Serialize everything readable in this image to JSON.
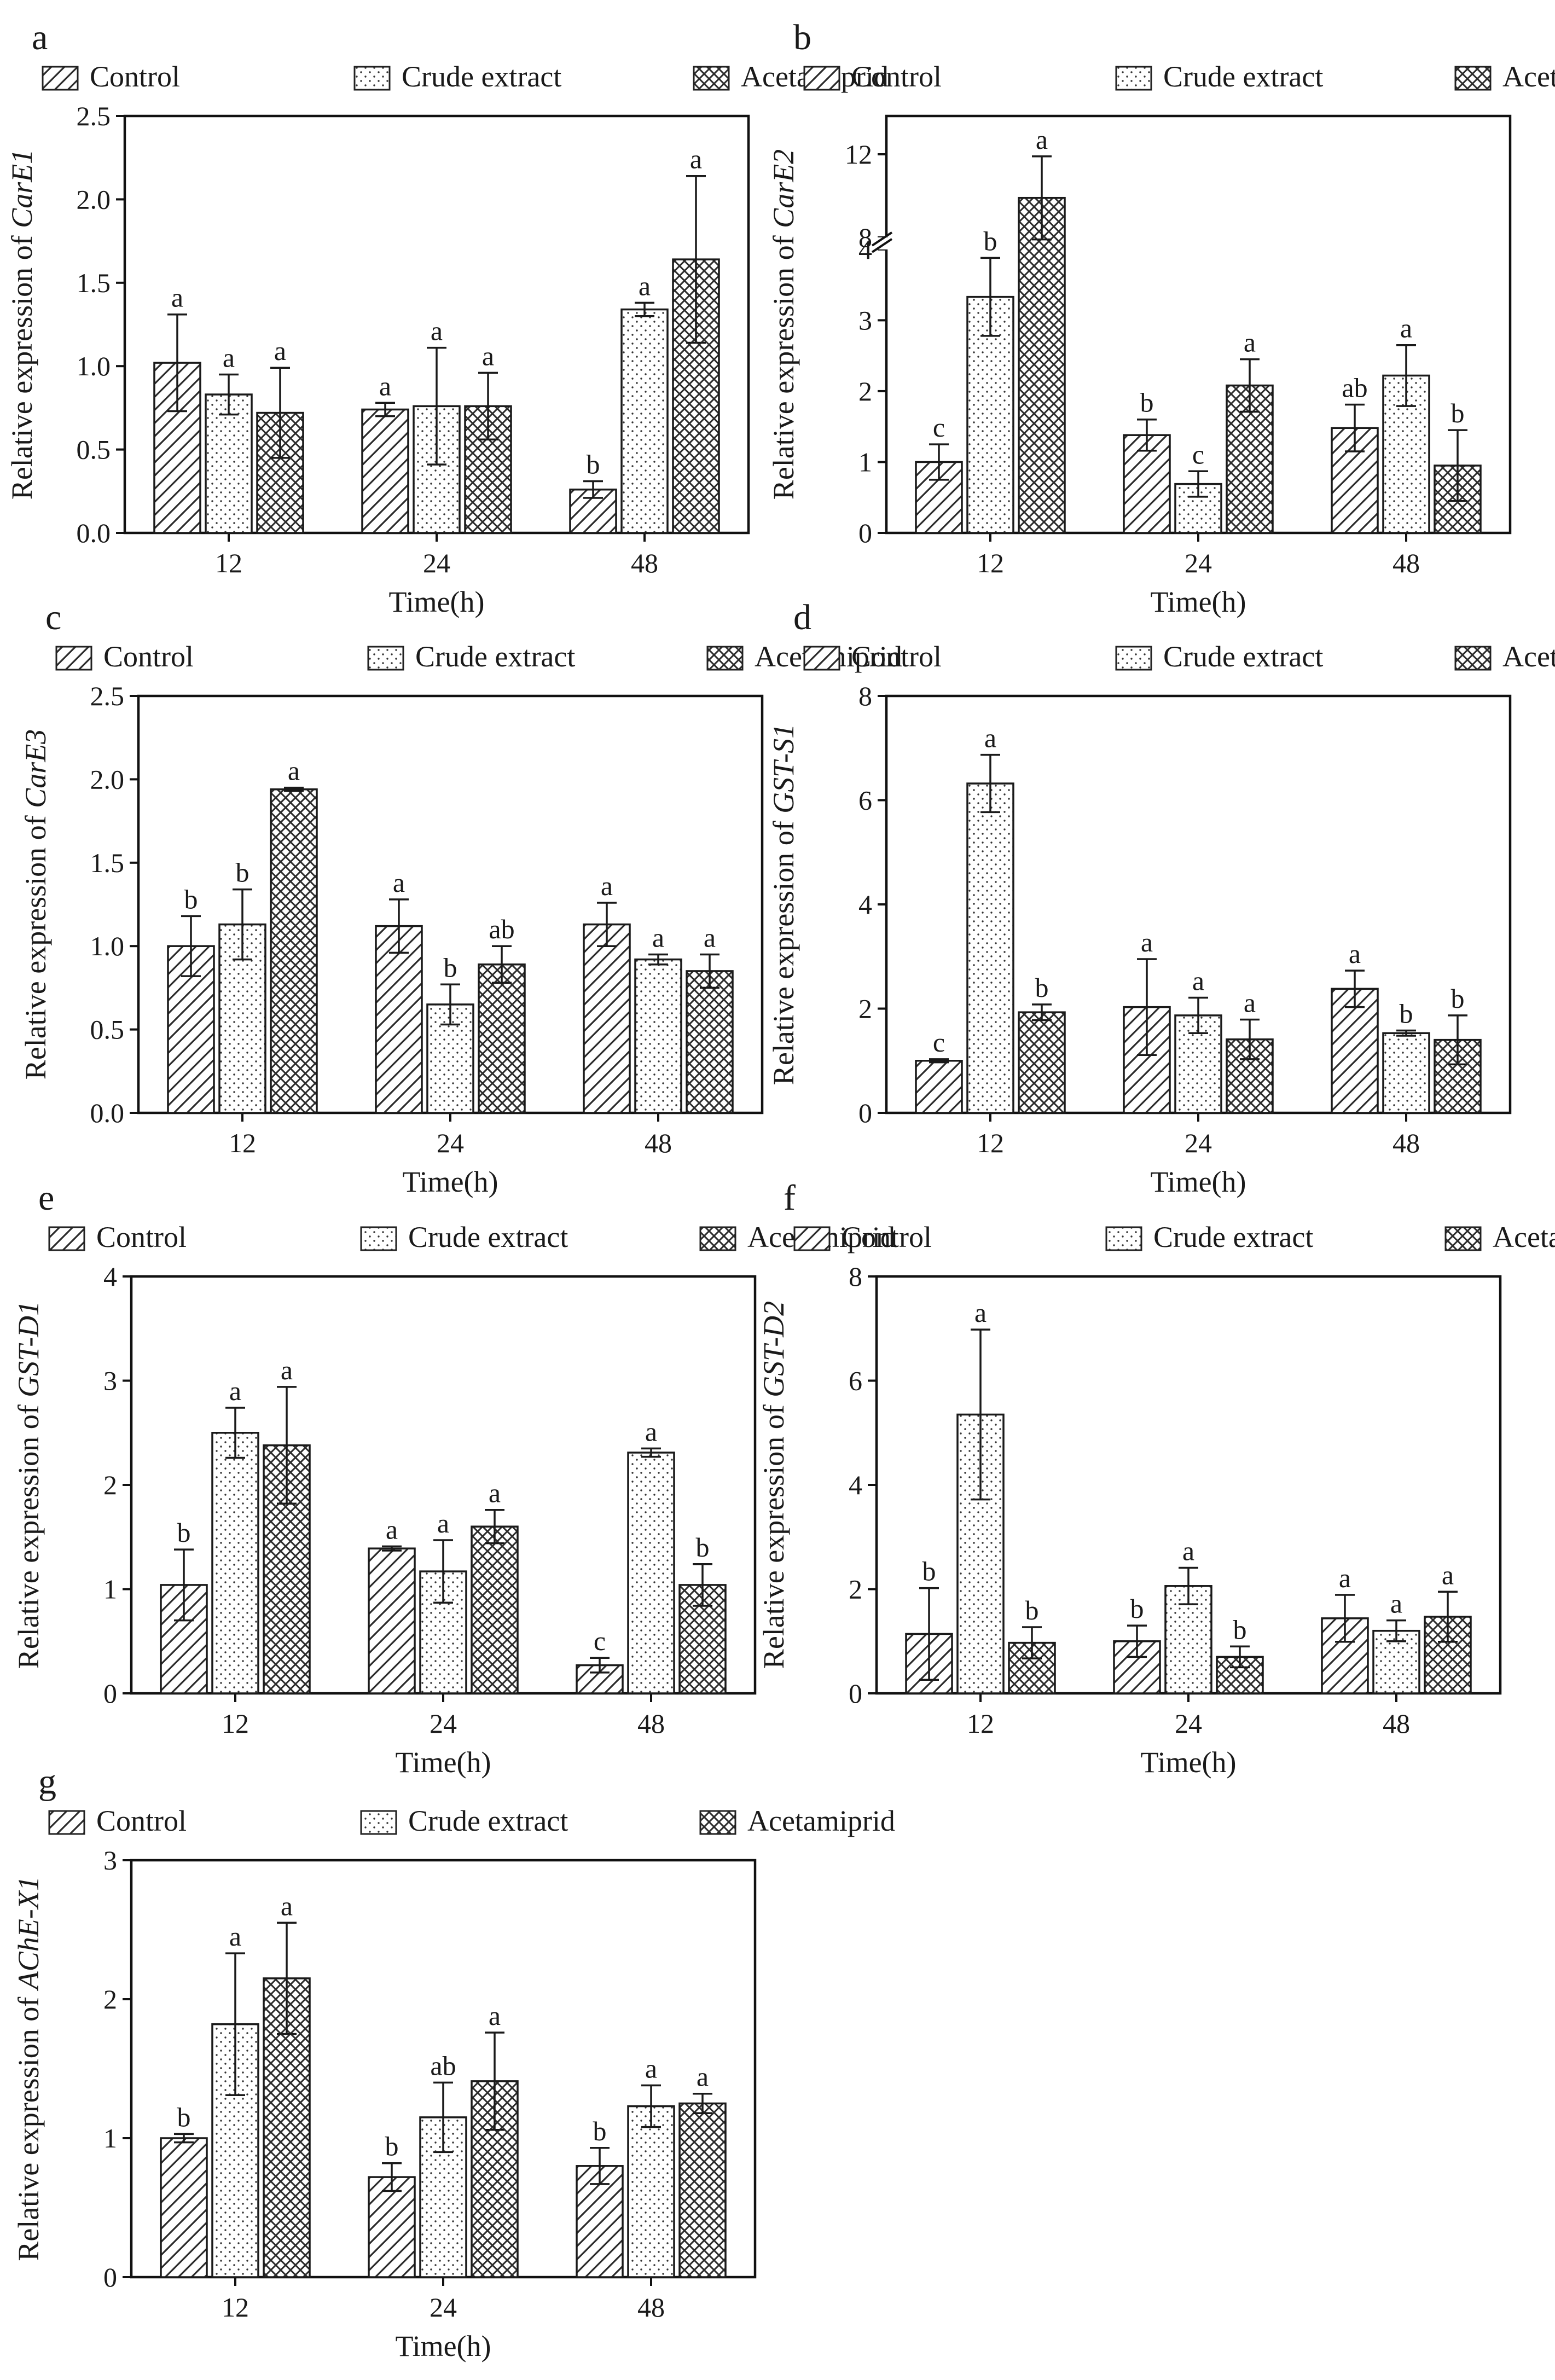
{
  "chart_data": [
    {
      "panel": "a",
      "type": "bar",
      "gene": "CarE1",
      "ylabel_prefix": "Relative expression of ",
      "xlabel": "Time(h)",
      "categories": [
        "12",
        "24",
        "48"
      ],
      "legend": [
        "Control",
        "Crude extract",
        "Acetamiprid"
      ],
      "ylim": [
        0,
        2.5
      ],
      "yticks": [
        "0.0",
        "0.5",
        "1.0",
        "1.5",
        "2.0",
        "2.5"
      ],
      "series": [
        {
          "name": "Control",
          "values": [
            1.02,
            0.74,
            0.26
          ],
          "errors": [
            0.29,
            0.04,
            0.05
          ],
          "letters": [
            "a",
            "a",
            "b"
          ]
        },
        {
          "name": "Crude extract",
          "values": [
            0.83,
            0.76,
            1.34
          ],
          "errors": [
            0.12,
            0.35,
            0.04
          ],
          "letters": [
            "a",
            "a",
            "a"
          ]
        },
        {
          "name": "Acetamiprid",
          "values": [
            0.72,
            0.76,
            1.64
          ],
          "errors": [
            0.27,
            0.2,
            0.5
          ],
          "letters": [
            "a",
            "a",
            "a"
          ]
        }
      ]
    },
    {
      "panel": "b",
      "type": "bar",
      "gene": "CarE2",
      "ylabel_prefix": "Relative expression of ",
      "xlabel": "Time(h)",
      "categories": [
        "12",
        "24",
        "48"
      ],
      "legend": [
        "Control",
        "Crude extract",
        "Acetamiprid"
      ],
      "ylim": [
        0,
        12
      ],
      "yticks": [
        "0",
        "1",
        "2",
        "3",
        "4",
        "8",
        "12"
      ],
      "axis_break": [
        4,
        8
      ],
      "series": [
        {
          "name": "Control",
          "values": [
            1.0,
            1.38,
            1.48
          ],
          "errors": [
            0.25,
            0.22,
            0.33
          ],
          "letters": [
            "c",
            "b",
            "ab"
          ]
        },
        {
          "name": "Crude extract",
          "values": [
            3.33,
            0.69,
            2.22
          ],
          "errors": [
            0.55,
            0.18,
            0.43
          ],
          "letters": [
            "b",
            "c",
            "a"
          ]
        },
        {
          "name": "Acetamiprid",
          "values": [
            9.9,
            2.08,
            0.95
          ],
          "errors": [
            2.0,
            0.37,
            0.5
          ],
          "letters": [
            "a",
            "a",
            "b"
          ]
        }
      ]
    },
    {
      "panel": "c",
      "type": "bar",
      "gene": "CarE3",
      "ylabel_prefix": "Relative expression of ",
      "xlabel": "Time(h)",
      "categories": [
        "12",
        "24",
        "48"
      ],
      "legend": [
        "Control",
        "Crude extract",
        "Acetamiprid"
      ],
      "ylim": [
        0,
        2.5
      ],
      "yticks": [
        "0.0",
        "0.5",
        "1.0",
        "1.5",
        "2.0",
        "2.5"
      ],
      "series": [
        {
          "name": "Control",
          "values": [
            1.0,
            1.12,
            1.13
          ],
          "errors": [
            0.18,
            0.16,
            0.13
          ],
          "letters": [
            "b",
            "a",
            "a"
          ]
        },
        {
          "name": "Crude extract",
          "values": [
            1.13,
            0.65,
            0.92
          ],
          "errors": [
            0.21,
            0.12,
            0.03
          ],
          "letters": [
            "b",
            "b",
            "a"
          ]
        },
        {
          "name": "Acetamiprid",
          "values": [
            1.94,
            0.89,
            0.85
          ],
          "errors": [
            0.01,
            0.11,
            0.1
          ],
          "letters": [
            "a",
            "ab",
            "a"
          ]
        }
      ]
    },
    {
      "panel": "d",
      "type": "bar",
      "gene": "GST-S1",
      "ylabel_prefix": "Relative expression of ",
      "xlabel": "Time(h)",
      "categories": [
        "12",
        "24",
        "48"
      ],
      "legend": [
        "Control",
        "Crude extract",
        "Acetamiprid"
      ],
      "ylim": [
        0,
        8
      ],
      "yticks": [
        "0",
        "2",
        "4",
        "6",
        "8"
      ],
      "series": [
        {
          "name": "Control",
          "values": [
            1.0,
            2.03,
            2.38
          ],
          "errors": [
            0.03,
            0.92,
            0.35
          ],
          "letters": [
            "c",
            "a",
            "a"
          ]
        },
        {
          "name": "Crude extract",
          "values": [
            6.32,
            1.87,
            1.53
          ],
          "errors": [
            0.55,
            0.34,
            0.05
          ],
          "letters": [
            "a",
            "a",
            "b"
          ]
        },
        {
          "name": "Acetamiprid",
          "values": [
            1.93,
            1.41,
            1.4
          ],
          "errors": [
            0.15,
            0.38,
            0.47
          ],
          "letters": [
            "b",
            "a",
            "b"
          ]
        }
      ]
    },
    {
      "panel": "e",
      "type": "bar",
      "gene": "GST-D1",
      "ylabel_prefix": "Relative expression of ",
      "xlabel": "Time(h)",
      "categories": [
        "12",
        "24",
        "48"
      ],
      "legend": [
        "Control",
        "Crude extract",
        "Acetamiprid"
      ],
      "ylim": [
        0,
        4
      ],
      "yticks": [
        "0",
        "1",
        "2",
        "3",
        "4"
      ],
      "series": [
        {
          "name": "Control",
          "values": [
            1.04,
            1.39,
            0.27
          ],
          "errors": [
            0.34,
            0.02,
            0.07
          ],
          "letters": [
            "b",
            "a",
            "c"
          ]
        },
        {
          "name": "Crude extract",
          "values": [
            2.5,
            1.17,
            2.31
          ],
          "errors": [
            0.24,
            0.3,
            0.04
          ],
          "letters": [
            "a",
            "a",
            "a"
          ]
        },
        {
          "name": "Acetamiprid",
          "values": [
            2.38,
            1.6,
            1.04
          ],
          "errors": [
            0.56,
            0.16,
            0.2
          ],
          "letters": [
            "a",
            "a",
            "b"
          ]
        }
      ]
    },
    {
      "panel": "f",
      "type": "bar",
      "gene": "GST-D2",
      "ylabel_prefix": "Relative expression of ",
      "xlabel": "Time(h)",
      "categories": [
        "12",
        "24",
        "48"
      ],
      "legend": [
        "Control",
        "Crude extract",
        "Acetamiprid"
      ],
      "ylim": [
        0,
        8
      ],
      "yticks": [
        "0",
        "2",
        "4",
        "6",
        "8"
      ],
      "series": [
        {
          "name": "Control",
          "values": [
            1.14,
            1.0,
            1.44
          ],
          "errors": [
            0.88,
            0.3,
            0.45
          ],
          "letters": [
            "b",
            "b",
            "a"
          ]
        },
        {
          "name": "Crude extract",
          "values": [
            5.35,
            2.06,
            1.2
          ],
          "errors": [
            1.63,
            0.35,
            0.2
          ],
          "letters": [
            "a",
            "a",
            "a"
          ]
        },
        {
          "name": "Acetamiprid",
          "values": [
            0.97,
            0.7,
            1.47
          ],
          "errors": [
            0.3,
            0.2,
            0.48
          ],
          "letters": [
            "b",
            "b",
            "a"
          ]
        }
      ]
    },
    {
      "panel": "g",
      "type": "bar",
      "gene": "AChE-X1",
      "ylabel_prefix": "Relative expression of ",
      "xlabel": "Time(h)",
      "categories": [
        "12",
        "24",
        "48"
      ],
      "legend": [
        "Control",
        "Crude extract",
        "Acetamiprid"
      ],
      "ylim": [
        0,
        3
      ],
      "yticks": [
        "0",
        "1",
        "2",
        "3"
      ],
      "series": [
        {
          "name": "Control",
          "values": [
            1.0,
            0.72,
            0.8
          ],
          "errors": [
            0.03,
            0.1,
            0.13
          ],
          "letters": [
            "b",
            "b",
            "b"
          ]
        },
        {
          "name": "Crude extract",
          "values": [
            1.82,
            1.15,
            1.23
          ],
          "errors": [
            0.51,
            0.25,
            0.15
          ],
          "letters": [
            "a",
            "ab",
            "a"
          ]
        },
        {
          "name": "Acetamiprid",
          "values": [
            2.15,
            1.41,
            1.25
          ],
          "errors": [
            0.4,
            0.35,
            0.07
          ],
          "letters": [
            "a",
            "a",
            "a"
          ]
        }
      ]
    }
  ]
}
